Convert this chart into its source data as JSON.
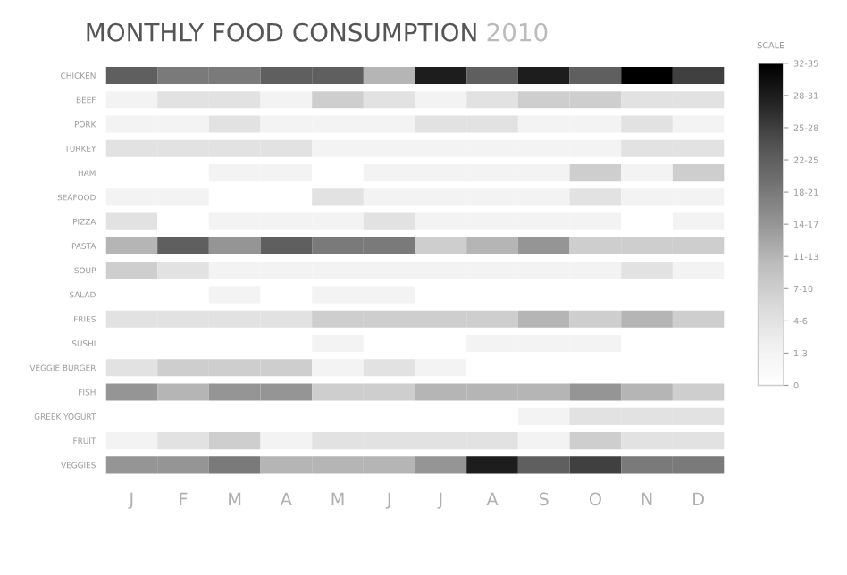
{
  "chart_data": {
    "type": "heatmap",
    "title": "MONTHLY FOOD CONSUMPTION",
    "subtitle": "2010",
    "clabel": "SCALE",
    "categories": [
      "J",
      "F",
      "M",
      "A",
      "M",
      "J",
      "J",
      "A",
      "S",
      "O",
      "N",
      "D"
    ],
    "y_categories": [
      "CHICKEN",
      "BEEF",
      "PORK",
      "TURKEY",
      "HAM",
      "SEAFOOD",
      "PIZZA",
      "PASTA",
      "SOUP",
      "SALAD",
      "FRIES",
      "SUSHI",
      "VEGGIE BURGER",
      "FISH",
      "GREEK YOGURT",
      "FRUIT",
      "VEGGIES"
    ],
    "cells": [
      [
        7,
        6,
        6,
        7,
        7,
        4,
        9,
        7,
        9,
        7,
        10,
        8
      ],
      [
        1,
        2,
        2,
        1,
        3,
        2,
        1,
        2,
        3,
        3,
        2,
        2
      ],
      [
        1,
        1,
        2,
        1,
        1,
        1,
        2,
        2,
        1,
        1,
        2,
        1
      ],
      [
        2,
        2,
        2,
        2,
        1,
        1,
        1,
        1,
        1,
        1,
        2,
        2
      ],
      [
        0,
        0,
        1,
        1,
        0,
        1,
        1,
        1,
        1,
        3,
        1,
        3
      ],
      [
        1,
        1,
        0,
        0,
        2,
        1,
        1,
        1,
        1,
        2,
        1,
        1
      ],
      [
        2,
        0,
        1,
        1,
        1,
        2,
        1,
        1,
        1,
        1,
        0,
        1
      ],
      [
        4,
        7,
        5,
        7,
        6,
        6,
        3,
        4,
        5,
        3,
        3,
        3
      ],
      [
        3,
        2,
        1,
        1,
        1,
        1,
        1,
        1,
        1,
        1,
        2,
        1
      ],
      [
        0,
        0,
        1,
        0,
        1,
        1,
        0,
        0,
        0,
        0,
        0,
        0
      ],
      [
        2,
        2,
        2,
        2,
        3,
        3,
        3,
        3,
        4,
        3,
        4,
        3
      ],
      [
        0,
        0,
        0,
        0,
        1,
        0,
        0,
        1,
        1,
        1,
        0,
        0
      ],
      [
        2,
        3,
        3,
        3,
        1,
        2,
        1,
        0,
        0,
        0,
        0,
        0
      ],
      [
        5,
        4,
        5,
        5,
        3,
        3,
        4,
        4,
        4,
        5,
        4,
        3
      ],
      [
        0,
        0,
        0,
        0,
        0,
        0,
        0,
        0,
        1,
        2,
        2,
        2
      ],
      [
        1,
        2,
        3,
        1,
        2,
        2,
        2,
        2,
        1,
        3,
        2,
        2
      ],
      [
        5,
        5,
        6,
        4,
        4,
        4,
        5,
        9,
        7,
        8,
        6,
        6
      ]
    ],
    "clim": [
      0,
      10
    ],
    "cticks": [
      {
        "value": 10,
        "label": "32-35"
      },
      {
        "value": 9,
        "label": "28-31"
      },
      {
        "value": 8,
        "label": "25-28"
      },
      {
        "value": 7,
        "label": "22-25"
      },
      {
        "value": 6,
        "label": "18-21"
      },
      {
        "value": 5,
        "label": "14-17"
      },
      {
        "value": 4,
        "label": "11-13"
      },
      {
        "value": 3,
        "label": "7-10"
      },
      {
        "value": 2,
        "label": "4-6"
      },
      {
        "value": 1,
        "label": "1-3"
      },
      {
        "value": 0,
        "label": "0"
      }
    ]
  }
}
